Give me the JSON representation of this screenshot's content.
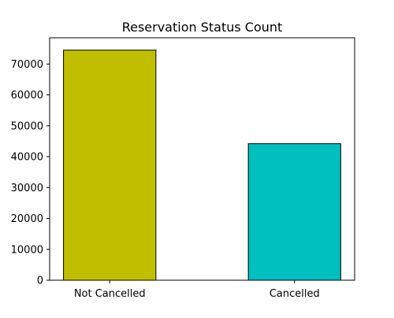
{
  "chart_data": {
    "type": "bar",
    "title": "Reservation Status Count",
    "xlabel": "",
    "ylabel": "",
    "categories": [
      "Not Cancelled",
      "Cancelled"
    ],
    "values": [
      74500,
      44200
    ],
    "ylim": [
      0,
      78500
    ],
    "yticks": [
      0,
      10000,
      20000,
      30000,
      40000,
      50000,
      60000,
      70000
    ],
    "colors": [
      "#bfbf00",
      "#00bfbf"
    ],
    "edge_color": "#000000",
    "grid": false,
    "legend": "none"
  }
}
